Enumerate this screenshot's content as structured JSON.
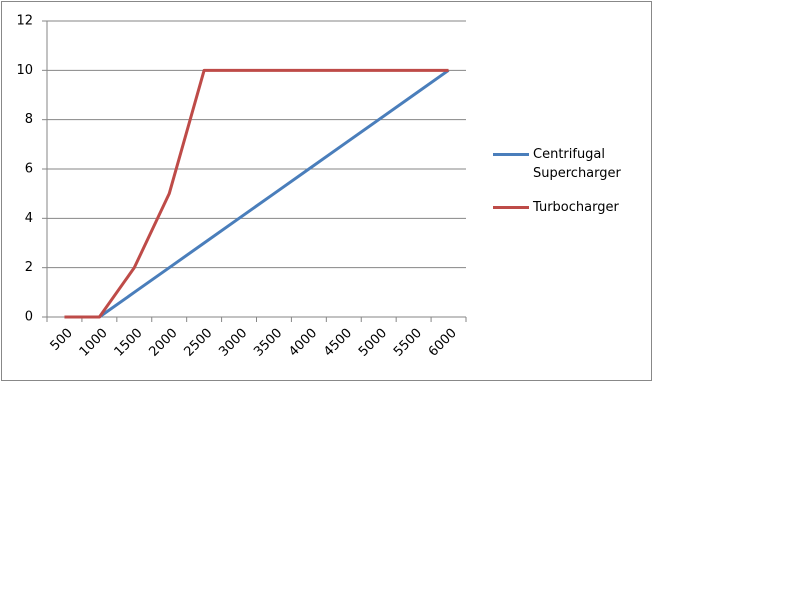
{
  "chart_data": {
    "type": "line",
    "categories": [
      "500",
      "1000",
      "1500",
      "2000",
      "2500",
      "3000",
      "3500",
      "4000",
      "4500",
      "5000",
      "5500",
      "6000"
    ],
    "series": [
      {
        "name": "Centrifugal Supercharger",
        "color": "#4a7ebb",
        "values": [
          null,
          0,
          1,
          2,
          3,
          4,
          5,
          6,
          7,
          8,
          9,
          10
        ]
      },
      {
        "name": "Turbocharger",
        "color": "#be4b48",
        "values": [
          0,
          0,
          2,
          5,
          10,
          10,
          10,
          10,
          10,
          10,
          10,
          10
        ]
      }
    ],
    "ylim": [
      0,
      12
    ],
    "yticks": [
      0,
      2,
      4,
      6,
      8,
      10,
      12
    ],
    "grid": true,
    "legend": "right"
  }
}
